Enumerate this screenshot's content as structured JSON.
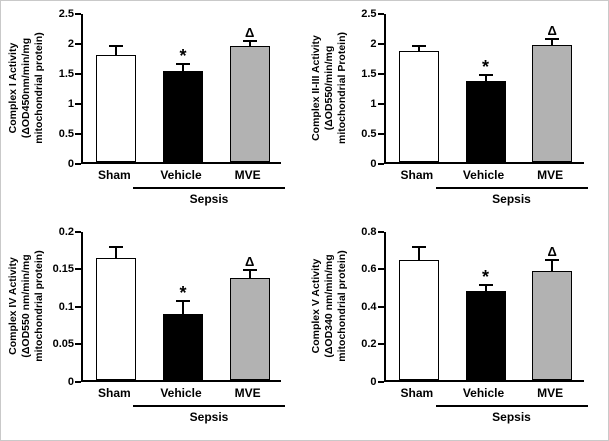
{
  "figure": {
    "background": "#ffffff",
    "axis_color": "#000000",
    "group_label": "Sepsis",
    "significance_markers": {
      "vehicle": "*",
      "mve": "Δ"
    }
  },
  "chart_data": [
    {
      "type": "bar",
      "title": "Complex I Activity",
      "ylabel_lines": [
        "Complex I Activity",
        "(ΔOD450nm/min/mg",
        "mitochondrial protein)"
      ],
      "categories": [
        "Sham",
        "Vehicle",
        "MVE"
      ],
      "values": [
        1.78,
        1.52,
        1.93
      ],
      "errors": [
        0.13,
        0.1,
        0.07
      ],
      "annotations": [
        "",
        "*",
        "Δ"
      ],
      "ylim": [
        0,
        2.5
      ],
      "yticks": [
        0,
        0.5,
        1,
        1.5,
        2,
        2.5
      ],
      "ytick_labels": [
        "0",
        "0.5",
        "1",
        "1.5",
        "2",
        "2.5"
      ],
      "bar_colors": [
        "#ffffff",
        "#000000",
        "#b2b2b2"
      ],
      "group_label": "Sepsis",
      "grid": false,
      "legend": "none"
    },
    {
      "type": "bar",
      "title": "Complex II-III Activity",
      "ylabel_lines": [
        "Complex II-III Activity",
        "(ΔOD550/min/mg",
        "mitochondrial Protein)"
      ],
      "categories": [
        "Sham",
        "Vehicle",
        "MVE"
      ],
      "values": [
        1.85,
        1.35,
        1.95
      ],
      "errors": [
        0.07,
        0.08,
        0.08
      ],
      "annotations": [
        "",
        "*",
        "Δ"
      ],
      "ylim": [
        0,
        2.5
      ],
      "yticks": [
        0,
        0.5,
        1,
        1.5,
        2,
        2.5
      ],
      "ytick_labels": [
        "0",
        "0.5",
        "1",
        "1.5",
        "2",
        "2.5"
      ],
      "bar_colors": [
        "#ffffff",
        "#000000",
        "#b2b2b2"
      ],
      "group_label": "Sepsis",
      "grid": false,
      "legend": "none"
    },
    {
      "type": "bar",
      "title": "Complex IV Activity",
      "ylabel_lines": [
        "Complex IV Activity",
        "(ΔOD550 nm/min/mg",
        "mitochondrial protein)"
      ],
      "categories": [
        "Sham",
        "Vehicle",
        "MVE"
      ],
      "values": [
        0.162,
        0.088,
        0.135
      ],
      "errors": [
        0.013,
        0.016,
        0.01
      ],
      "annotations": [
        "",
        "*",
        "Δ"
      ],
      "ylim": [
        0,
        0.2
      ],
      "yticks": [
        0,
        0.05,
        0.1,
        0.15,
        0.2
      ],
      "ytick_labels": [
        "0",
        "0.05",
        "0.1",
        "0.15",
        "0.2"
      ],
      "bar_colors": [
        "#ffffff",
        "#000000",
        "#b2b2b2"
      ],
      "group_label": "Sepsis",
      "grid": false,
      "legend": "none"
    },
    {
      "type": "bar",
      "title": "Complex V Activity",
      "ylabel_lines": [
        "Complex V Activity",
        "(ΔOD340 nm/min/mg",
        "mitochondrial protein)"
      ],
      "categories": [
        "Sham",
        "Vehicle",
        "MVE"
      ],
      "values": [
        0.64,
        0.47,
        0.58
      ],
      "errors": [
        0.06,
        0.03,
        0.05
      ],
      "annotations": [
        "",
        "*",
        "Δ"
      ],
      "ylim": [
        0,
        0.8
      ],
      "yticks": [
        0,
        0.2,
        0.4,
        0.6,
        0.8
      ],
      "ytick_labels": [
        "0",
        "0.2",
        "0.4",
        "0.6",
        "0.8"
      ],
      "bar_colors": [
        "#ffffff",
        "#000000",
        "#b2b2b2"
      ],
      "group_label": "Sepsis",
      "grid": false,
      "legend": "none"
    }
  ]
}
